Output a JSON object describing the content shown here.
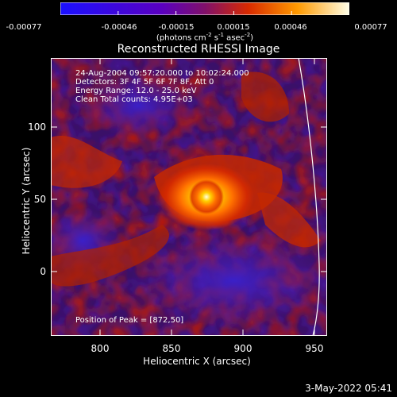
{
  "colorbar": {
    "ticks": [
      "-0.00077",
      "-0.00046",
      "-0.00015",
      "0.00015",
      "0.00046",
      "0.00077"
    ],
    "units_prefix": "(photons cm",
    "units_exp1": "-2",
    "units_mid1": " s",
    "units_exp2": "-1",
    "units_mid2": " asec",
    "units_exp3": "-2",
    "units_suffix": ")",
    "colors": [
      "#1a10ff",
      "#6a00b8",
      "#8a1060",
      "#e23000",
      "#ff9a00",
      "#ffffe0"
    ]
  },
  "title": "Reconstructed RHESSI Image",
  "annotations": {
    "time": "24-Aug-2004 09:57:20.000 to 10:02:24.000",
    "detectors": "Detectors: 3F 4F 5F 6F 7F 8F, Att 0",
    "energy": "Energy Range: 12.0 - 25.0 keV",
    "clean": "Clean    Total counts: 4.95E+03",
    "peak": "Position of Peak = [872,50]"
  },
  "axes": {
    "xlabel": "Heliocentric X (arcsec)",
    "ylabel": "Heliocentric Y (arcsec)",
    "xticks": [
      "800",
      "850",
      "900",
      "950"
    ],
    "yticks": [
      "100",
      "50",
      "0"
    ]
  },
  "timestamp": "3-May-2022 05:41"
}
